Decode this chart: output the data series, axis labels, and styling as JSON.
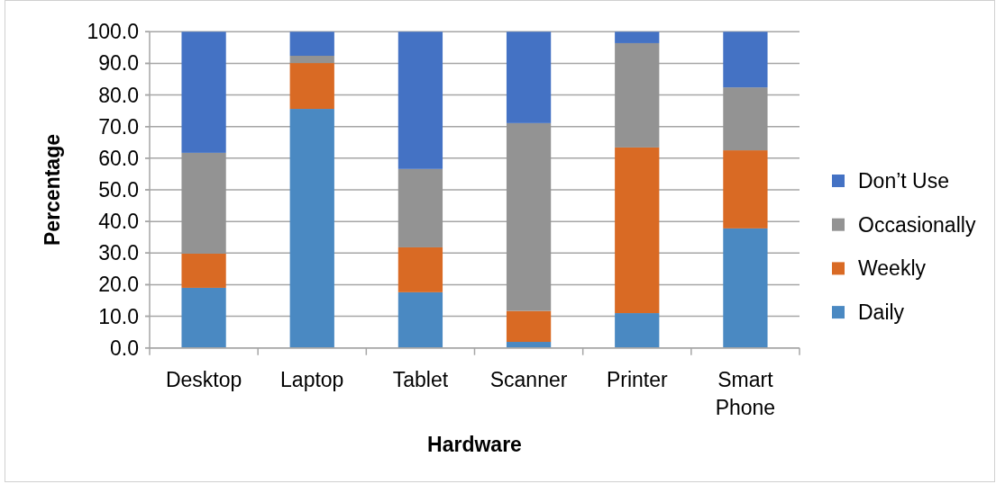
{
  "chart_data": {
    "type": "bar",
    "stacked": true,
    "xlabel": "Hardware",
    "ylabel": "Percentage",
    "categories": [
      "Desktop",
      "Laptop",
      "Tablet",
      "Scanner",
      "Printer",
      "Smart Phone"
    ],
    "series": [
      {
        "name": "Daily",
        "color": "#4a89c2",
        "values": [
          19.0,
          75.6,
          17.6,
          1.9,
          11.0,
          37.8
        ]
      },
      {
        "name": "Weekly",
        "color": "#d96a24",
        "values": [
          10.8,
          14.5,
          14.2,
          9.8,
          52.4,
          24.7
        ]
      },
      {
        "name": "Occasionally",
        "color": "#939393",
        "values": [
          31.9,
          2.3,
          24.8,
          59.4,
          33.0,
          19.9
        ]
      },
      {
        "name": "Don’t Use",
        "color": "#4472c4",
        "values": [
          38.3,
          7.6,
          43.4,
          28.9,
          3.6,
          17.6
        ]
      }
    ],
    "ylim": [
      0,
      100
    ],
    "yticks": [
      {
        "value": 0,
        "label": "0.0"
      },
      {
        "value": 10,
        "label": "10.0"
      },
      {
        "value": 20,
        "label": "20.0"
      },
      {
        "value": 30,
        "label": "30.0"
      },
      {
        "value": 40,
        "label": "40.0"
      },
      {
        "value": 50,
        "label": "50.0"
      },
      {
        "value": 60,
        "label": "60.0"
      },
      {
        "value": 70,
        "label": "70.0"
      },
      {
        "value": 80,
        "label": "80.0"
      },
      {
        "value": 90,
        "label": "90.0"
      },
      {
        "value": 100,
        "label": "100.0"
      }
    ],
    "grid": "y",
    "legend": "right"
  }
}
